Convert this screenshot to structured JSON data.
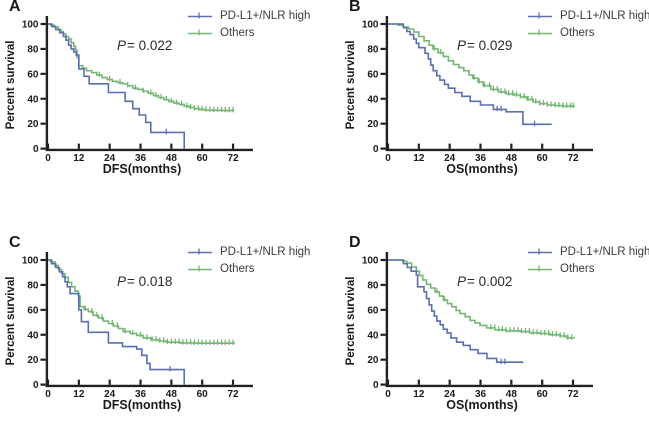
{
  "figure": {
    "colors": {
      "axis": "#231f20",
      "tick_text": "#1a1a1a",
      "blue": "#5a6fb0",
      "green": "#74b674"
    }
  },
  "chart_data": [
    {
      "type": "line",
      "subtype": "kaplan-meier-step",
      "panel_label": "A",
      "xlabel": "DFS(months)",
      "ylabel": "Percent survival",
      "p_prefix": "P",
      "p_text": "= 0.022",
      "xticks": [
        0,
        12,
        24,
        36,
        48,
        60,
        72
      ],
      "yticks": [
        0,
        20,
        40,
        60,
        80,
        100
      ],
      "xlim": [
        0,
        78
      ],
      "ylim": [
        0,
        100
      ],
      "legend_position": "top-right",
      "series": [
        {
          "name": "PD-L1+/NLR high",
          "color": "#5a6fb0",
          "steps": [
            [
              0,
              100
            ],
            [
              1.5,
              98
            ],
            [
              3,
              95.5
            ],
            [
              4.5,
              93
            ],
            [
              6,
              90
            ],
            [
              7,
              87
            ],
            [
              8,
              83
            ],
            [
              9,
              80
            ],
            [
              10,
              77.5
            ],
            [
              11,
              75
            ],
            [
              12,
              64
            ],
            [
              14,
              58
            ],
            [
              16,
              52
            ],
            [
              23.5,
              45
            ],
            [
              30,
              38
            ],
            [
              33,
              32
            ],
            [
              35.5,
              27
            ],
            [
              38,
              21
            ],
            [
              40,
              13
            ],
            [
              53,
              0
            ]
          ],
          "censors": [
            46
          ]
        },
        {
          "name": "Others",
          "color": "#74b674",
          "steps": [
            [
              0,
              100
            ],
            [
              1,
              99
            ],
            [
              2.5,
              97.5
            ],
            [
              4,
              95.5
            ],
            [
              5,
              94
            ],
            [
              6,
              92
            ],
            [
              7,
              90
            ],
            [
              8,
              88
            ],
            [
              9,
              85
            ],
            [
              10,
              82
            ],
            [
              10.7,
              79
            ],
            [
              11.3,
              73
            ],
            [
              12,
              66.5
            ],
            [
              13.5,
              64.5
            ],
            [
              15,
              62.5
            ],
            [
              17,
              61
            ],
            [
              19,
              59
            ],
            [
              21,
              57
            ],
            [
              23,
              55.5
            ],
            [
              25,
              54
            ],
            [
              27,
              53
            ],
            [
              29,
              52
            ],
            [
              31,
              50.5
            ],
            [
              33,
              48.5
            ],
            [
              35,
              47.5
            ],
            [
              37,
              46
            ],
            [
              39,
              44.5
            ],
            [
              41,
              42.5
            ],
            [
              43,
              41
            ],
            [
              45,
              39.5
            ],
            [
              47,
              38
            ],
            [
              49,
              36.5
            ],
            [
              51,
              35.5
            ],
            [
              53,
              34
            ],
            [
              55,
              33
            ],
            [
              57,
              32
            ],
            [
              59,
              31.5
            ],
            [
              61,
              31
            ],
            [
              64,
              30.7
            ],
            [
              68,
              30.5
            ],
            [
              72.5,
              30.5
            ]
          ],
          "censors": [
            20,
            24,
            28,
            31,
            34,
            37,
            40,
            42,
            44,
            46,
            48,
            50,
            52,
            54,
            55.5,
            57,
            58.5,
            60,
            61.5,
            63,
            64.5,
            66,
            67.5,
            69,
            70.5,
            72
          ]
        }
      ]
    },
    {
      "type": "line",
      "subtype": "kaplan-meier-step",
      "panel_label": "B",
      "xlabel": "OS(months)",
      "ylabel": "Percent survival",
      "p_prefix": "P",
      "p_text": "= 0.029",
      "xticks": [
        0,
        12,
        24,
        36,
        48,
        60,
        72
      ],
      "yticks": [
        0,
        20,
        40,
        60,
        80,
        100
      ],
      "xlim": [
        0,
        78
      ],
      "ylim": [
        0,
        100
      ],
      "legend_position": "top-right",
      "series": [
        {
          "name": "PD-L1+/NLR high",
          "color": "#5a6fb0",
          "steps": [
            [
              0,
              100
            ],
            [
              5.3,
              100
            ],
            [
              6,
              97
            ],
            [
              7.3,
              94
            ],
            [
              8.6,
              91.5
            ],
            [
              10,
              88
            ],
            [
              11,
              84.5
            ],
            [
              12,
              81
            ],
            [
              14.4,
              76.5
            ],
            [
              15.7,
              72
            ],
            [
              16.6,
              67
            ],
            [
              17.6,
              62.5
            ],
            [
              19,
              58.5
            ],
            [
              20.2,
              55
            ],
            [
              22,
              51.5
            ],
            [
              23.5,
              48.5
            ],
            [
              26,
              45
            ],
            [
              28.7,
              42
            ],
            [
              32,
              38
            ],
            [
              36,
              35
            ],
            [
              41,
              31.5
            ],
            [
              46,
              29.5
            ],
            [
              52.5,
              19.5
            ],
            [
              63.7,
              19.5
            ]
          ],
          "censors": [
            42.5,
            44,
            57
          ]
        },
        {
          "name": "Others",
          "color": "#74b674",
          "steps": [
            [
              0,
              100
            ],
            [
              4,
              99
            ],
            [
              6,
              97.5
            ],
            [
              8,
              96
            ],
            [
              10,
              93.5
            ],
            [
              12,
              90
            ],
            [
              14,
              86.5
            ],
            [
              16,
              83
            ],
            [
              17.5,
              80
            ],
            [
              19.5,
              77
            ],
            [
              21.5,
              74
            ],
            [
              23.5,
              70.5
            ],
            [
              25.5,
              67.5
            ],
            [
              27.5,
              65
            ],
            [
              29.5,
              62.5
            ],
            [
              31.5,
              59
            ],
            [
              33,
              56.5
            ],
            [
              35,
              53.5
            ],
            [
              37,
              50.5
            ],
            [
              40,
              47.5
            ],
            [
              43,
              45.5
            ],
            [
              46,
              44
            ],
            [
              49,
              43
            ],
            [
              51.5,
              41.5
            ],
            [
              54,
              39.5
            ],
            [
              56.5,
              37.5
            ],
            [
              59,
              36
            ],
            [
              62,
              35
            ],
            [
              65,
              34.5
            ],
            [
              68,
              34
            ],
            [
              72.5,
              33.5
            ]
          ],
          "censors": [
            18,
            20.5,
            33.5,
            35.5,
            37.5,
            39.5,
            41,
            42.5,
            44,
            45.5,
            47,
            48.5,
            50,
            51.5,
            53,
            54.5,
            56,
            57.5,
            59,
            60.5,
            62,
            63.5,
            65,
            66.5,
            68,
            69.5,
            71,
            72
          ]
        }
      ]
    },
    {
      "type": "line",
      "subtype": "kaplan-meier-step",
      "panel_label": "C",
      "xlabel": "DFS(months)",
      "ylabel": "Percent survival",
      "p_prefix": "P",
      "p_text": "= 0.018",
      "xticks": [
        0,
        12,
        24,
        36,
        48,
        60,
        72
      ],
      "yticks": [
        0,
        20,
        40,
        60,
        80,
        100
      ],
      "xlim": [
        0,
        78
      ],
      "ylim": [
        0,
        100
      ],
      "legend_position": "top-right",
      "series": [
        {
          "name": "PD-L1+/NLR high",
          "color": "#5a6fb0",
          "steps": [
            [
              0,
              100
            ],
            [
              1.4,
              97
            ],
            [
              3,
              94
            ],
            [
              4.4,
              90.5
            ],
            [
              5.7,
              86.5
            ],
            [
              6.6,
              82.5
            ],
            [
              7.5,
              78.5
            ],
            [
              8.6,
              73
            ],
            [
              12,
              60
            ],
            [
              13,
              50.5
            ],
            [
              15.7,
              42
            ],
            [
              23.5,
              33.5
            ],
            [
              29,
              30.5
            ],
            [
              34.5,
              28.5
            ],
            [
              36.5,
              23.5
            ],
            [
              38.5,
              17
            ],
            [
              39.7,
              12
            ],
            [
              53,
              0
            ]
          ],
          "censors": [
            47.5
          ]
        },
        {
          "name": "Others",
          "color": "#74b674",
          "steps": [
            [
              0,
              100
            ],
            [
              1,
              98.5
            ],
            [
              2.7,
              95.5
            ],
            [
              4,
              92.5
            ],
            [
              5.3,
              89
            ],
            [
              6.6,
              86
            ],
            [
              7.9,
              82
            ],
            [
              9.2,
              78.5
            ],
            [
              10.5,
              75
            ],
            [
              11.8,
              71
            ],
            [
              12.5,
              62.5
            ],
            [
              14,
              60.5
            ],
            [
              15.7,
              58.5
            ],
            [
              17.6,
              55.5
            ],
            [
              19.6,
              53.5
            ],
            [
              21.5,
              51
            ],
            [
              23.5,
              49
            ],
            [
              25.4,
              47
            ],
            [
              27.4,
              45
            ],
            [
              29.3,
              42.5
            ],
            [
              32,
              41
            ],
            [
              34.5,
              39.5
            ],
            [
              37,
              37.5
            ],
            [
              40,
              36
            ],
            [
              43,
              35
            ],
            [
              46,
              34
            ],
            [
              51.5,
              33.5
            ],
            [
              57,
              33.2
            ],
            [
              72.5,
              33
            ]
          ],
          "censors": [
            14.5,
            17,
            19,
            21,
            25,
            27,
            30,
            33,
            36,
            38.5,
            40.5,
            42,
            43.5,
            45,
            46.5,
            48,
            49.5,
            51,
            52.5,
            54,
            55.5,
            57,
            58.5,
            60,
            61.5,
            63,
            64.5,
            66,
            67.5,
            69,
            70.5,
            72
          ]
        }
      ]
    },
    {
      "type": "line",
      "subtype": "kaplan-meier-step",
      "panel_label": "D",
      "xlabel": "OS(months)",
      "ylabel": "Percent survival",
      "p_prefix": "P",
      "p_text": "= 0.002",
      "xticks": [
        0,
        12,
        24,
        36,
        48,
        60,
        72
      ],
      "yticks": [
        0,
        20,
        40,
        60,
        80,
        100
      ],
      "xlim": [
        0,
        78
      ],
      "ylim": [
        0,
        100
      ],
      "legend_position": "top-right",
      "series": [
        {
          "name": "PD-L1+/NLR high",
          "color": "#5a6fb0",
          "steps": [
            [
              0,
              100
            ],
            [
              5,
              100
            ],
            [
              6,
              97
            ],
            [
              7.5,
              94
            ],
            [
              9,
              91
            ],
            [
              11,
              88
            ],
            [
              11.5,
              78.5
            ],
            [
              14,
              74.5
            ],
            [
              15,
              69
            ],
            [
              16,
              64
            ],
            [
              17,
              59
            ],
            [
              18,
              55
            ],
            [
              19,
              51
            ],
            [
              20.3,
              48
            ],
            [
              21.5,
              44.5
            ],
            [
              23,
              41.5
            ],
            [
              24.5,
              37.5
            ],
            [
              26.7,
              34
            ],
            [
              29.3,
              31.5
            ],
            [
              32,
              28
            ],
            [
              35,
              25
            ],
            [
              38.5,
              21
            ],
            [
              42.3,
              18
            ],
            [
              52.7,
              18
            ]
          ],
          "censors": [
            44,
            45.5
          ]
        },
        {
          "name": "Others",
          "color": "#74b674",
          "steps": [
            [
              0,
              100
            ],
            [
              5.7,
              99
            ],
            [
              7.3,
              97.5
            ],
            [
              9.2,
              94.5
            ],
            [
              11,
              91
            ],
            [
              12.2,
              87.5
            ],
            [
              13.5,
              84
            ],
            [
              15,
              80.5
            ],
            [
              16.6,
              77.5
            ],
            [
              18.3,
              74.5
            ],
            [
              20,
              71
            ],
            [
              21.5,
              68
            ],
            [
              23.1,
              65
            ],
            [
              24.8,
              62.5
            ],
            [
              26.5,
              59.5
            ],
            [
              28,
              57
            ],
            [
              30,
              54.5
            ],
            [
              32,
              51.5
            ],
            [
              33.8,
              49.5
            ],
            [
              35.8,
              47.5
            ],
            [
              38.4,
              45.5
            ],
            [
              41.6,
              44
            ],
            [
              46,
              43.2
            ],
            [
              51.4,
              42.5
            ],
            [
              55.2,
              41.5
            ],
            [
              59.1,
              41
            ],
            [
              63,
              40
            ],
            [
              66.9,
              39
            ],
            [
              69.5,
              37.5
            ],
            [
              72.5,
              37
            ]
          ],
          "censors": [
            19,
            22,
            40,
            41.5,
            43,
            44.5,
            46,
            47.5,
            49,
            50.5,
            52,
            53.5,
            55,
            56.5,
            58,
            59.5,
            61,
            62.5,
            64,
            65.5,
            67,
            68.5,
            70,
            71.5
          ]
        }
      ]
    }
  ]
}
